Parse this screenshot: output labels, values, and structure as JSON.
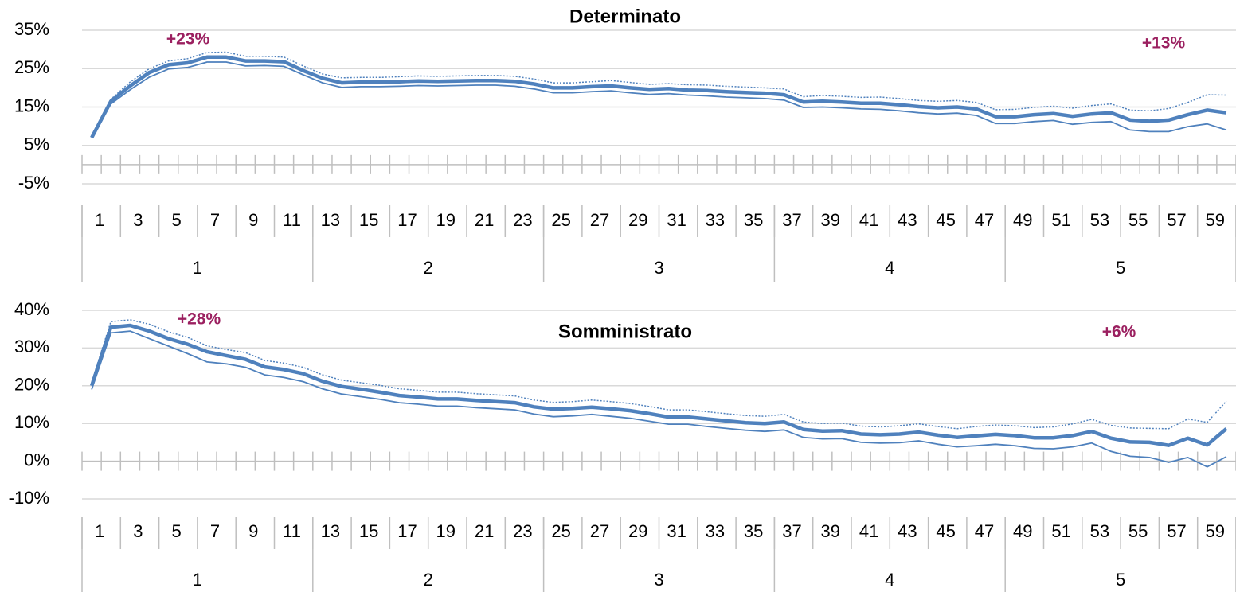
{
  "chart_data": [
    {
      "type": "line",
      "title": "Determinato",
      "categories": [
        1,
        null,
        3,
        null,
        5,
        null,
        7,
        null,
        9,
        null,
        11,
        null,
        13,
        null,
        15,
        null,
        17,
        null,
        19,
        null,
        21,
        null,
        23,
        null,
        25,
        null,
        27,
        null,
        29,
        null,
        31,
        null,
        33,
        null,
        35,
        null,
        37,
        null,
        39,
        null,
        41,
        null,
        43,
        null,
        45,
        null,
        47,
        null,
        49,
        null,
        51,
        null,
        53,
        null,
        55,
        null,
        57,
        null,
        59,
        null
      ],
      "groups": [
        1,
        2,
        3,
        4,
        5
      ],
      "series": [
        {
          "color": "#4f81bd",
          "style": "solid-thick",
          "values": [
            7,
            16.5,
            20.5,
            24,
            26,
            26.5,
            28,
            28,
            27,
            27,
            26.8,
            24.5,
            22.5,
            21.3,
            21.5,
            21.5,
            21.6,
            21.8,
            21.7,
            21.8,
            21.9,
            21.9,
            21.7,
            21,
            20,
            20,
            20.3,
            20.5,
            20,
            19.6,
            19.8,
            19.4,
            19.3,
            19,
            18.8,
            18.6,
            18.2,
            16.3,
            16.5,
            16.3,
            16,
            16,
            15.6,
            15.1,
            14.8,
            15,
            14.5,
            12.5,
            12.5,
            13,
            13.3,
            12.6,
            13.2,
            13.5,
            11.6,
            11.3,
            11.6,
            13,
            14.2,
            13.5
          ]
        },
        {
          "color": "#4f81bd",
          "style": "solid-thin",
          "values": [
            6.8,
            15.8,
            19.5,
            22.8,
            24.9,
            25.3,
            26.7,
            26.7,
            25.7,
            25.8,
            25.6,
            23.4,
            21.3,
            20.1,
            20.3,
            20.3,
            20.4,
            20.6,
            20.5,
            20.6,
            20.7,
            20.7,
            20.4,
            19.7,
            18.7,
            18.7,
            19,
            19.2,
            18.7,
            18.3,
            18.5,
            18.1,
            17.9,
            17.6,
            17.4,
            17.2,
            16.8,
            14.9,
            15,
            14.8,
            14.5,
            14.4,
            14,
            13.5,
            13.2,
            13.4,
            12.8,
            10.7,
            10.7,
            11.2,
            11.5,
            10.5,
            11,
            11.2,
            9,
            8.6,
            8.6,
            9.9,
            10.6,
            9
          ]
        },
        {
          "color": "#4f81bd",
          "style": "dotted",
          "values": [
            7.2,
            17,
            21.5,
            25,
            27,
            27.6,
            29.2,
            29.3,
            28.2,
            28.2,
            28,
            25.7,
            23.6,
            22.6,
            22.7,
            22.7,
            22.9,
            23.1,
            23,
            23.1,
            23.2,
            23.2,
            23,
            22.3,
            21.3,
            21.3,
            21.6,
            21.9,
            21.4,
            20.9,
            21.1,
            20.8,
            20.7,
            20.4,
            20.2,
            20,
            19.7,
            17.7,
            18,
            17.8,
            17.5,
            17.6,
            17.2,
            16.7,
            16.5,
            16.7,
            16.2,
            14.3,
            14.4,
            14.9,
            15.2,
            14.7,
            15.4,
            15.8,
            14.2,
            14,
            14.6,
            16.2,
            18.2,
            18.1
          ]
        }
      ],
      "ylim": [
        -5,
        35
      ],
      "yticks": [
        {
          "value": -5,
          "label": "-5%"
        },
        {
          "value": 5,
          "label": "5%"
        },
        {
          "value": 15,
          "label": "15%"
        },
        {
          "value": 25,
          "label": "25%"
        },
        {
          "value": 35,
          "label": "35%"
        }
      ],
      "grid": true,
      "annotations": [
        "+23%",
        "+13%"
      ]
    },
    {
      "type": "line",
      "title": "Somministrato",
      "categories": [
        1,
        null,
        3,
        null,
        5,
        null,
        7,
        null,
        9,
        null,
        11,
        null,
        13,
        null,
        15,
        null,
        17,
        null,
        19,
        null,
        21,
        null,
        23,
        null,
        25,
        null,
        27,
        null,
        29,
        null,
        31,
        null,
        33,
        null,
        35,
        null,
        37,
        null,
        39,
        null,
        41,
        null,
        43,
        null,
        45,
        null,
        47,
        null,
        49,
        null,
        51,
        null,
        53,
        null,
        55,
        null,
        57,
        null,
        59,
        null
      ],
      "groups": [
        1,
        2,
        3,
        4,
        5
      ],
      "series": [
        {
          "color": "#4f81bd",
          "style": "solid-thick",
          "values": [
            20,
            35.5,
            36,
            34.5,
            32.5,
            31,
            29,
            28,
            27,
            25,
            24.3,
            23.2,
            21.2,
            19.8,
            19.1,
            18.3,
            17.4,
            17,
            16.5,
            16.5,
            16.1,
            15.8,
            15.5,
            14.4,
            13.8,
            14,
            14.3,
            13.9,
            13.4,
            12.6,
            11.7,
            11.7,
            11.2,
            10.7,
            10.2,
            10,
            10.4,
            8.4,
            8,
            8.1,
            7.2,
            7,
            7.2,
            7.7,
            6.9,
            6.3,
            6.7,
            7.1,
            6.8,
            6.2,
            6.2,
            6.8,
            7.9,
            6.1,
            5.1,
            5,
            4.2,
            6.1,
            4.3,
            8.6
          ]
        },
        {
          "color": "#4f81bd",
          "style": "solid-thin",
          "values": [
            19,
            34,
            34.5,
            32.5,
            30.5,
            28.5,
            26.3,
            25.8,
            24.9,
            22.9,
            22.2,
            21.1,
            19.2,
            17.8,
            17.1,
            16.4,
            15.5,
            15.1,
            14.6,
            14.6,
            14.2,
            13.9,
            13.6,
            12.5,
            11.8,
            12,
            12.4,
            11.9,
            11.4,
            10.6,
            9.8,
            9.8,
            9.2,
            8.7,
            8.2,
            7.9,
            8.3,
            6.3,
            5.9,
            6,
            5,
            4.8,
            4.9,
            5.4,
            4.5,
            3.8,
            4.1,
            4.5,
            4.1,
            3.4,
            3.3,
            3.8,
            4.8,
            2.6,
            1.3,
            1,
            -0.3,
            1,
            -1.5,
            1.2
          ]
        },
        {
          "color": "#4f81bd",
          "style": "dotted",
          "values": [
            21,
            37,
            37.5,
            36.3,
            34.3,
            32.8,
            30.6,
            29.6,
            28.8,
            26.7,
            26,
            24.9,
            22.9,
            21.5,
            20.8,
            20.1,
            19.2,
            18.8,
            18.3,
            18.3,
            17.9,
            17.6,
            17.3,
            16.2,
            15.6,
            15.8,
            16.2,
            15.8,
            15.3,
            14.5,
            13.6,
            13.6,
            13.1,
            12.6,
            12.1,
            11.9,
            12.4,
            10.4,
            10,
            10.1,
            9.3,
            9.1,
            9.4,
            9.9,
            9.2,
            8.6,
            9.2,
            9.6,
            9.4,
            8.9,
            9.1,
            9.9,
            11.1,
            9.5,
            8.8,
            8.7,
            8.6,
            11.2,
            10.3,
            15.9
          ]
        }
      ],
      "ylim": [
        -10,
        40
      ],
      "yticks": [
        {
          "value": -10,
          "label": "-10%"
        },
        {
          "value": 0,
          "label": "0%"
        },
        {
          "value": 10,
          "label": "10%"
        },
        {
          "value": 20,
          "label": "20%"
        },
        {
          "value": 30,
          "label": "30%"
        },
        {
          "value": 40,
          "label": "40%"
        }
      ],
      "grid": true,
      "annotations": [
        "+28%",
        "+6%"
      ]
    }
  ]
}
